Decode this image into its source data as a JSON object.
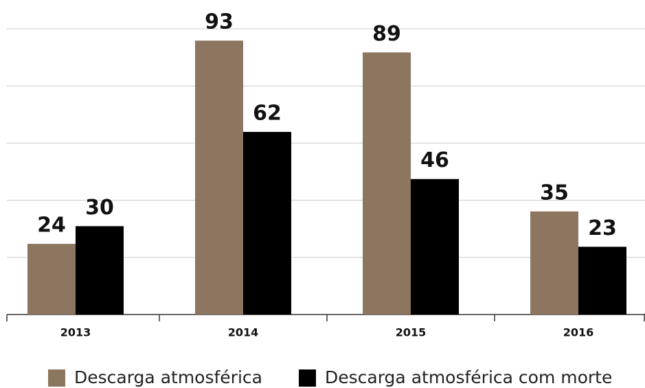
{
  "chart_data": {
    "type": "bar",
    "categories": [
      "2013",
      "2014",
      "2015",
      "2016"
    ],
    "series": [
      {
        "name": "Descarga atmosférica",
        "color": "#8c7660",
        "values": [
          24,
          93,
          89,
          35
        ]
      },
      {
        "name": "Descarga atmosférica com morte",
        "color": "#000000",
        "values": [
          30,
          62,
          46,
          23
        ]
      }
    ],
    "ylim": [
      0,
      97
    ],
    "yticks": [
      0,
      19.4,
      38.8,
      58.2,
      77.6,
      97
    ],
    "grid": true
  }
}
